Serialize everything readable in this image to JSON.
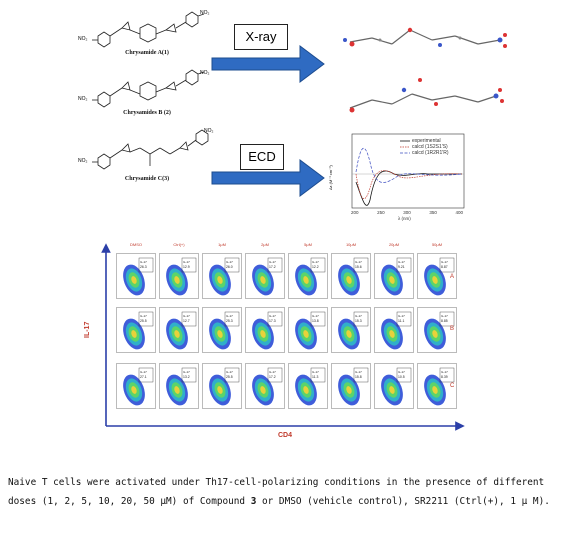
{
  "compounds": [
    {
      "label": "Chrysamide A(1)"
    },
    {
      "label": "Chrysamides B (2)"
    },
    {
      "label": "Chrysamide C(3)"
    }
  ],
  "substituent": "NO₂",
  "methods": {
    "xray": "X-ray",
    "ecd": "ECD"
  },
  "ecd_chart": {
    "ylabel": "Δε (M⁻¹ cm⁻¹)",
    "xlabel": "λ (nm)",
    "xticks": [
      "200",
      "250",
      "300",
      "350",
      "400"
    ],
    "legend": [
      "experimental",
      "calcd (1S2S1'S)",
      "calcd (1R2R1'R)"
    ],
    "colors": [
      "#111111",
      "#c0392b",
      "#3b4cc0"
    ]
  },
  "flow_panel": {
    "columns": [
      "DMSO",
      "Ctrl(+)",
      "1μM",
      "2μM",
      "5μM",
      "10μM",
      "20μM",
      "50μM"
    ],
    "rows": [
      "A",
      "B",
      "C"
    ],
    "y_axis": "IL-17",
    "x_axis": "CD4",
    "gate_label": "IL-17",
    "values": [
      [
        "26.3",
        "12.9",
        "26.0",
        "17.2",
        "12.2",
        "15.6",
        "9.21",
        "8.87"
      ],
      [
        "25.5",
        "12.7",
        "25.3",
        "17.3",
        "13.8",
        "15.3",
        "11.1",
        "8.85"
      ],
      [
        "27.1",
        "13.2",
        "25.5",
        "17.2",
        "11.3",
        "15.8",
        "10.5",
        "8.39"
      ]
    ]
  },
  "caption": {
    "part1": "Naive T cells were activated under Th17-cell-polarizing conditions in the presence of different doses (1, 2, 5, 10, 20, 50 μM) of Compound ",
    "bold": "3",
    "part2": " or DMSO (vehicle control), SR2211 (Ctrl(+), 1 μ M)."
  }
}
